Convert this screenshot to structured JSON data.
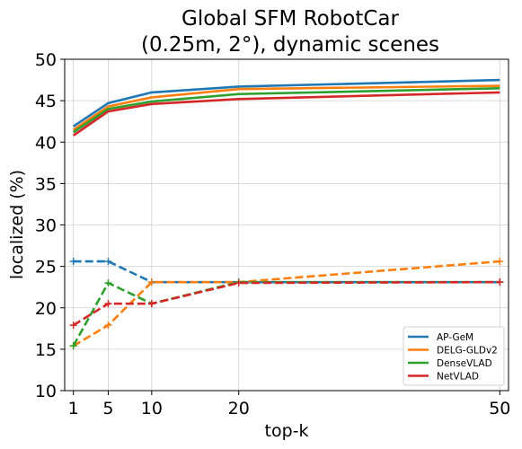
{
  "chart_data": {
    "type": "line",
    "title": [
      "Global SFM RobotCar",
      "(0.25m, 2°), dynamic scenes"
    ],
    "xlabel": "top-k",
    "ylabel": "localized (%)",
    "x": [
      1,
      5,
      10,
      20,
      50
    ],
    "xticks": [
      1,
      5,
      10,
      20,
      50
    ],
    "yticks": [
      10,
      15,
      20,
      25,
      30,
      35,
      40,
      45,
      50
    ],
    "xlim": [
      0,
      51
    ],
    "ylim": [
      10,
      50
    ],
    "grid": true,
    "legend_position": "lower-right",
    "series": [
      {
        "name": "AP-GeM",
        "color": "#1f77b4",
        "solid": [
          41.9,
          44.7,
          46.0,
          46.7,
          47.5
        ],
        "dashed": [
          25.6,
          25.6,
          23.1,
          23.1,
          23.1
        ]
      },
      {
        "name": "DELG-GLDv2",
        "color": "#ff7f0e",
        "solid": [
          41.5,
          44.3,
          45.4,
          46.4,
          46.8
        ],
        "dashed": [
          15.4,
          17.9,
          23.1,
          23.1,
          25.6
        ]
      },
      {
        "name": "DenseVLAD",
        "color": "#2ca02c",
        "solid": [
          41.2,
          44.0,
          44.9,
          45.8,
          46.5
        ],
        "dashed": [
          15.4,
          23.0,
          20.5,
          23.1,
          23.1
        ]
      },
      {
        "name": "NetVLAD",
        "color": "#d62728",
        "solid": [
          40.8,
          43.7,
          44.6,
          45.2,
          46.0
        ],
        "dashed": [
          17.9,
          20.5,
          20.5,
          23.0,
          23.1
        ]
      }
    ]
  }
}
